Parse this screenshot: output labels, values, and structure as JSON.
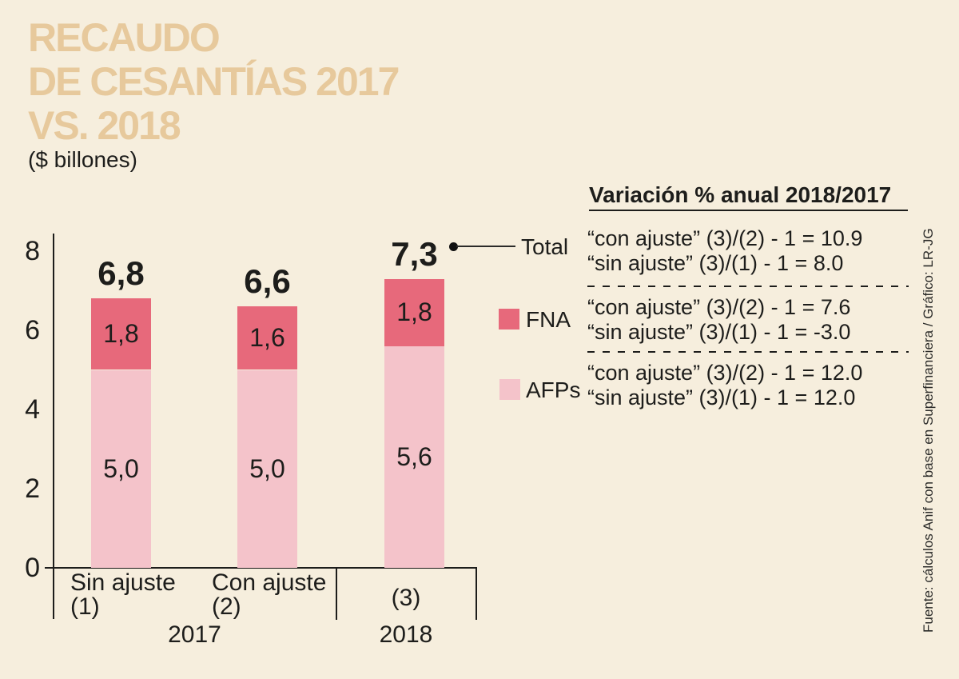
{
  "header": {
    "title_lines": [
      "RECAUDO",
      "DE CESANTÍAS 2017",
      "VS. 2018"
    ],
    "subtitle": "($ billones)"
  },
  "colors": {
    "background": "#f6eedd",
    "title": "#e7c99c",
    "fna": "#e7697b",
    "afps": "#f4c3ca",
    "ink": "#1d1d1b"
  },
  "chart_data": {
    "type": "bar",
    "stacked": true,
    "title": "RECAUDO DE CESANTÍAS 2017 VS. 2018",
    "units": "$ billones",
    "categories": [
      {
        "line1": "Sin ajuste",
        "line2": "(1)",
        "group": "2017"
      },
      {
        "line1": "Con ajuste",
        "line2": "(2)",
        "group": "2017"
      },
      {
        "line1": "",
        "line2": "(3)",
        "group": "2018"
      }
    ],
    "group_labels": [
      "2017",
      "2018"
    ],
    "series": [
      {
        "name": "AFPs",
        "values": [
          5.0,
          5.0,
          5.6
        ],
        "labels": [
          "5,0",
          "5,0",
          "5,6"
        ],
        "color": "#f4c3ca"
      },
      {
        "name": "FNA",
        "values": [
          1.8,
          1.6,
          1.8
        ],
        "labels": [
          "1,8",
          "1,6",
          "1,8"
        ],
        "color": "#e7697b"
      }
    ],
    "totals": [
      6.8,
      6.6,
      7.3
    ],
    "total_labels": [
      "6,8",
      "6,6",
      "7,3"
    ],
    "ylim": [
      0,
      8
    ],
    "y_ticks": [
      0,
      2,
      4,
      6,
      8
    ],
    "grid": false,
    "legend_position": "right"
  },
  "legend": {
    "total_label": "Total",
    "fna_label": "FNA",
    "afps_label": "AFPs"
  },
  "variation_panel": {
    "title": "Variación % anual 2018/2017",
    "sections": [
      {
        "name": "Total",
        "lines": [
          "“con ajuste” (3)/(2) - 1 = 10.9",
          "“sin ajuste” (3)/(1) - 1 = 8.0"
        ]
      },
      {
        "name": "FNA",
        "lines": [
          "“con ajuste” (3)/(2) - 1 = 7.6",
          "“sin ajuste” (3)/(1) - 1 = -3.0"
        ]
      },
      {
        "name": "AFPs",
        "lines": [
          "“con ajuste” (3)/(2) - 1 = 12.0",
          "“sin ajuste” (3)/(1) - 1 = 12.0"
        ]
      }
    ]
  },
  "source": "Fuente: cálculos Anif con base en Superfinanciera / Gráfico: LR-JG"
}
